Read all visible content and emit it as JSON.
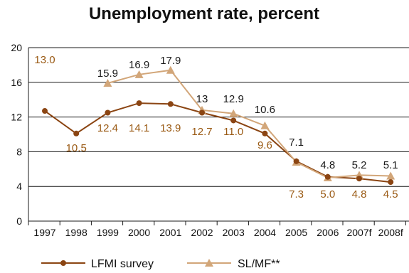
{
  "chart_data": {
    "type": "line",
    "title": "Unemployment rate, percent",
    "categories": [
      "1997",
      "1998",
      "1999",
      "2000",
      "2001",
      "2002",
      "2003",
      "2004",
      "2005",
      "2006",
      "2007f",
      "2008f"
    ],
    "ylim": [
      0,
      20
    ],
    "yticks": [
      "0",
      "4",
      "8",
      "12",
      "16",
      "20"
    ],
    "grid": true,
    "legend_position": "bottom",
    "series": [
      {
        "name": "LFMI survey",
        "marker": "circle",
        "color": "#8B4513",
        "values": [
          13.0,
          10.5,
          12.4,
          14.1,
          13.9,
          12.7,
          11.0,
          9.6,
          7.3,
          5.0,
          4.8,
          4.5
        ],
        "labels": [
          "13.0",
          "10.5",
          "12.4",
          "14.1",
          "13.9",
          "12.7",
          "11.0",
          "9.6",
          "7.3",
          "5.0",
          "4.8",
          "4.5"
        ],
        "plotted": [
          12.7,
          10.1,
          12.5,
          13.6,
          13.5,
          12.5,
          11.6,
          10.1,
          6.9,
          5.1,
          4.9,
          4.5
        ]
      },
      {
        "name": "SL/MF**",
        "marker": "triangle",
        "color": "#D2A679",
        "values": [
          null,
          null,
          15.9,
          16.9,
          17.9,
          13,
          12.9,
          10.6,
          7.1,
          4.8,
          5.2,
          5.1
        ],
        "labels": [
          null,
          null,
          "15.9",
          "16.9",
          "17.9",
          "13",
          "12.9",
          "10.6",
          "7.1",
          "4.8",
          "5.2",
          "5.1"
        ],
        "plotted": [
          null,
          null,
          15.9,
          16.9,
          17.4,
          12.8,
          12.4,
          11.0,
          6.8,
          5.0,
          5.3,
          5.2
        ]
      }
    ]
  }
}
